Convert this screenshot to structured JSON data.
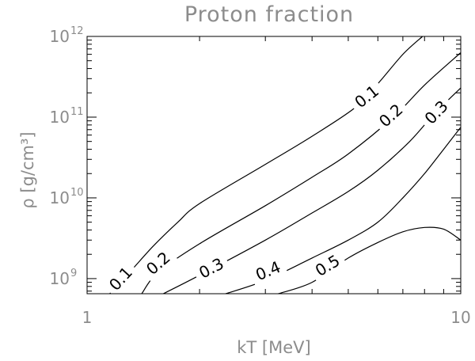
{
  "chart_data": {
    "type": "contour",
    "title": "Proton fraction",
    "xlabel": "kT [MeV]",
    "ylabel": "ρ [g/cm³]",
    "x_scale": "log",
    "y_scale": "log",
    "xlim": [
      1,
      10
    ],
    "ylim": [
      650000000.0,
      1000000000000.0
    ],
    "grid": false,
    "x_ticks": [
      {
        "base": "1",
        "exp": "",
        "value": 1
      },
      {
        "base": "10",
        "exp": "",
        "value": 10
      }
    ],
    "y_ticks": [
      {
        "base": "10",
        "exp": "9",
        "value": 1000000000.0
      },
      {
        "base": "10",
        "exp": "10",
        "value": 10000000000.0
      },
      {
        "base": "10",
        "exp": "11",
        "value": 100000000000.0
      },
      {
        "base": "10",
        "exp": "12",
        "value": 1000000000000.0
      }
    ],
    "contours": [
      {
        "level": 0.1,
        "label": "0.1",
        "points": [
          [
            1.15,
            650000000.0
          ],
          [
            1.3,
            1200000000.0
          ],
          [
            1.5,
            2500000000.0
          ],
          [
            1.75,
            5000000000.0
          ],
          [
            2.0,
            8500000000.0
          ],
          [
            3.0,
            26000000000.0
          ],
          [
            4.0,
            58000000000.0
          ],
          [
            5.2,
            130000000000.0
          ],
          [
            6.0,
            260000000000.0
          ],
          [
            7.0,
            600000000000.0
          ],
          [
            7.9,
            1000000000000.0
          ]
        ]
      },
      {
        "level": 0.2,
        "label": "0.2",
        "points": [
          [
            1.4,
            650000000.0
          ],
          [
            1.55,
            1200000000.0
          ],
          [
            2.0,
            2700000000.0
          ],
          [
            3.0,
            8000000000.0
          ],
          [
            4.0,
            18000000000.0
          ],
          [
            5.0,
            35000000000.0
          ],
          [
            6.6,
            100000000000.0
          ],
          [
            8.0,
            250000000000.0
          ],
          [
            10.0,
            630000000000.0
          ]
        ]
      },
      {
        "level": 0.3,
        "label": "0.3",
        "points": [
          [
            1.6,
            650000000.0
          ],
          [
            2.0,
            1100000000.0
          ],
          [
            3.0,
            3000000000.0
          ],
          [
            4.0,
            6500000000.0
          ],
          [
            5.0,
            12000000000.0
          ],
          [
            6.0,
            22000000000.0
          ],
          [
            7.3,
            50000000000.0
          ],
          [
            8.5,
            110000000000.0
          ],
          [
            10.0,
            230000000000.0
          ]
        ]
      },
      {
        "level": 0.4,
        "label": "0.4",
        "points": [
          [
            2.35,
            650000000.0
          ],
          [
            3.0,
            950000000.0
          ],
          [
            4.0,
            1800000000.0
          ],
          [
            5.0,
            3000000000.0
          ],
          [
            6.0,
            5000000000.0
          ],
          [
            7.0,
            10000000000.0
          ],
          [
            8.0,
            20000000000.0
          ],
          [
            9.0,
            40000000000.0
          ],
          [
            10.0,
            75000000000.0
          ]
        ]
      },
      {
        "level": 0.5,
        "label": "0.5",
        "points": [
          [
            3.25,
            650000000.0
          ],
          [
            4.0,
            900000000.0
          ],
          [
            5.0,
            1800000000.0
          ],
          [
            6.0,
            2800000000.0
          ],
          [
            7.0,
            3800000000.0
          ],
          [
            8.0,
            4300000000.0
          ],
          [
            9.0,
            4100000000.0
          ],
          [
            10.0,
            3000000000.0
          ]
        ]
      }
    ]
  }
}
